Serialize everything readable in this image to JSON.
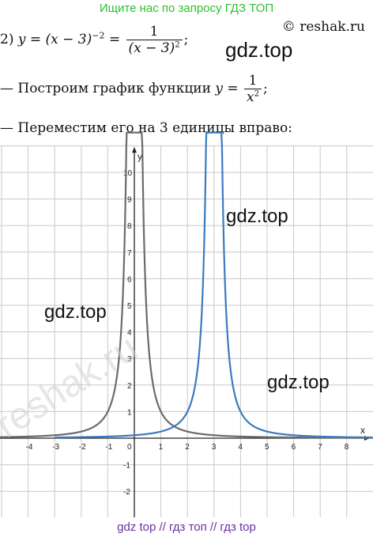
{
  "banner": "Ищите нас по запросу ГДЗ ТОП",
  "copyright": "© reshak.ru",
  "task": {
    "number": "2)",
    "lhs": "y = (x − 3)",
    "exponent": "−2",
    "equals": "=",
    "num": "1",
    "den_base": "(x − 3)",
    "den_exp": "2",
    "end": ";"
  },
  "step1": {
    "text": "— Построим график функции",
    "lhs": "y =",
    "num": "1",
    "den_base": "x",
    "den_exp": "2",
    "end": ";"
  },
  "step2": "— Переместим его на 3 единицы вправо:",
  "watermarks": [
    "gdz.top",
    "gdz.top",
    "gdz.top",
    "gdz.top"
  ],
  "reshak_watermark": "reshak.ru",
  "footer": "gdz top  //  гдз топ  //  гдз top",
  "chart_data": {
    "type": "line",
    "xlabel": "x",
    "ylabel": "y",
    "xlim": [
      -4.8,
      8.9
    ],
    "ylim": [
      -3,
      11.2
    ],
    "x_ticks": [
      "-4",
      "-3",
      "-2",
      "-1",
      "0",
      "1",
      "2",
      "3",
      "4",
      "5",
      "6",
      "7",
      "8"
    ],
    "y_ticks": [
      "10",
      "9",
      "8",
      "7",
      "6",
      "5",
      "4",
      "3",
      "2",
      "1",
      "-1",
      "-2"
    ],
    "grid": true,
    "series": [
      {
        "formula": "1/x^2",
        "color": "#6b6b6b",
        "shift": 0
      },
      {
        "formula": "1/(x-3)^2",
        "color": "#3a7bbf",
        "shift": 3
      }
    ]
  },
  "colors": {
    "banner": "#2fc02f",
    "footer": "#6a2fa0",
    "curve1": "#6b6b6b",
    "curve2": "#3a7bbf",
    "grid": "#c8c8c8"
  }
}
